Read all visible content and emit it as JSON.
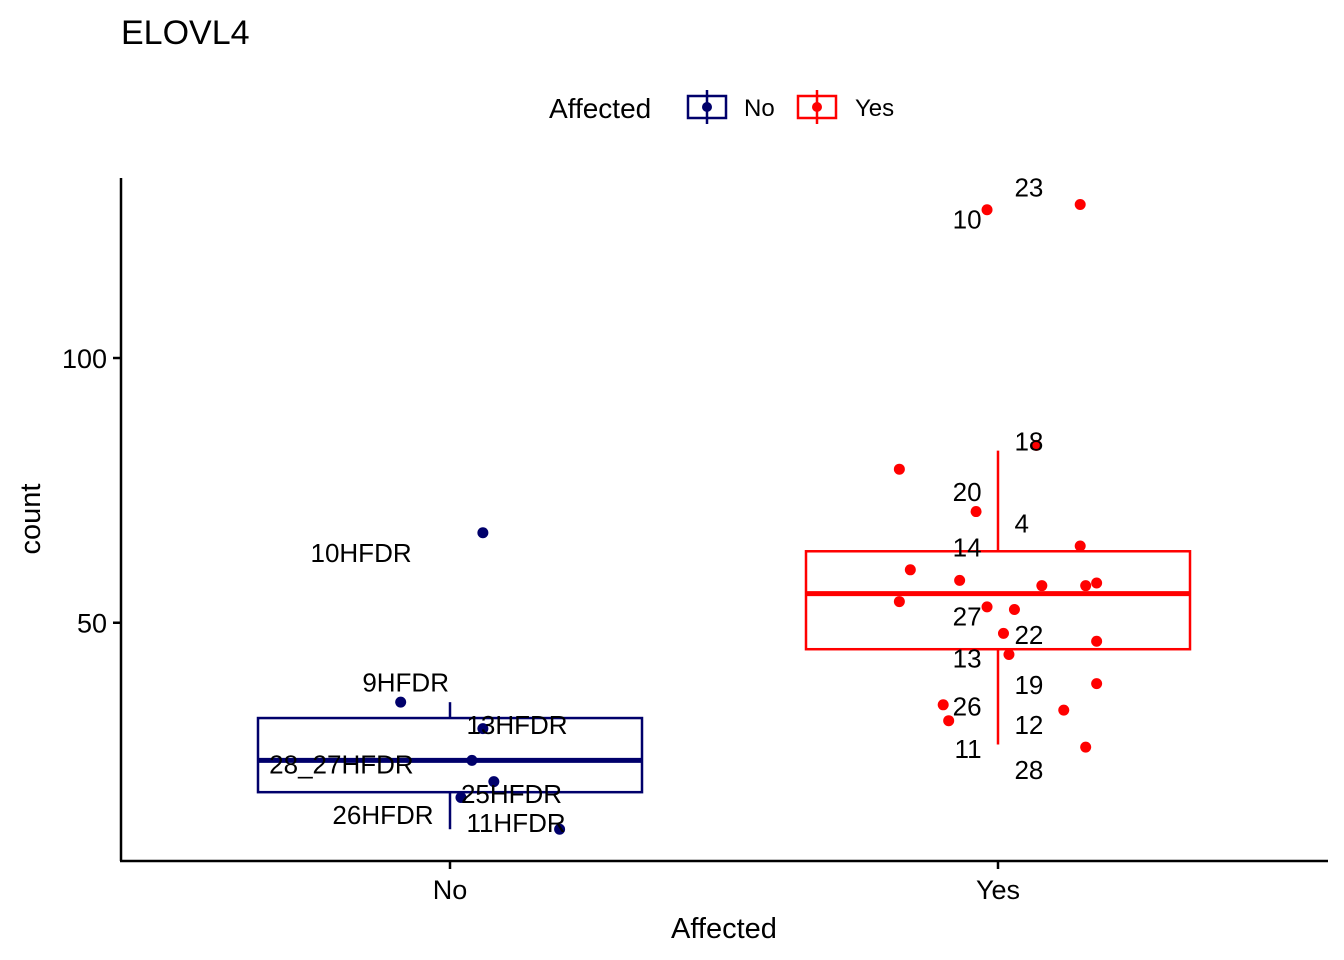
{
  "chart_data": {
    "type": "boxplot",
    "title": "ELOVL4",
    "xlabel": "Affected",
    "ylabel": "count",
    "ylim": [
      5,
      134
    ],
    "y_ticks": [
      50,
      100
    ],
    "categories": [
      "No",
      "Yes"
    ],
    "legend": {
      "title": "Affected",
      "position": "top",
      "entries": [
        {
          "label": "No",
          "color": "#00006B"
        },
        {
          "label": "Yes",
          "color": "#FF0000"
        }
      ]
    },
    "series": [
      {
        "name": "No",
        "color": "#00006B",
        "box": {
          "whisker_low": 11,
          "q1": 18,
          "median": 24,
          "q3": 32,
          "whisker_high": 35
        },
        "points": [
          {
            "x": 0.06,
            "y": 67
          },
          {
            "x": -0.09,
            "y": 35
          },
          {
            "x": 0.06,
            "y": 30
          },
          {
            "x": 0.04,
            "y": 24
          },
          {
            "x": 0.08,
            "y": 20
          },
          {
            "x": 0.02,
            "y": 17
          },
          {
            "x": 0.2,
            "y": 11
          }
        ],
        "labels": [
          {
            "text": "10HFDR",
            "x": -0.07,
            "y": 61.5,
            "anchor": "end"
          },
          {
            "text": "9HFDR",
            "x": -0.16,
            "y": 37,
            "anchor": "start"
          },
          {
            "text": "13HFDR",
            "x": 0.03,
            "y": 29,
            "anchor": "start"
          },
          {
            "text": "28_27HFDR",
            "x": -0.33,
            "y": 21.5,
            "anchor": "start"
          },
          {
            "text": "25HFDR",
            "x": 0.02,
            "y": 16,
            "anchor": "start"
          },
          {
            "text": "26HFDR",
            "x": -0.03,
            "y": 12,
            "anchor": "end"
          },
          {
            "text": "11HFDR",
            "x": 0.03,
            "y": 10.5,
            "anchor": "start"
          }
        ]
      },
      {
        "name": "Yes",
        "color": "#FF0000",
        "box": {
          "whisker_low": 27,
          "q1": 45,
          "median": 55.5,
          "q3": 63.5,
          "whisker_high": 82.5
        },
        "points": [
          {
            "x": -0.02,
            "y": 128
          },
          {
            "x": 0.15,
            "y": 129
          },
          {
            "x": 0.07,
            "y": 83.5
          },
          {
            "x": -0.18,
            "y": 79
          },
          {
            "x": -0.04,
            "y": 71
          },
          {
            "x": 0.15,
            "y": 64.5
          },
          {
            "x": -0.16,
            "y": 60
          },
          {
            "x": -0.07,
            "y": 58
          },
          {
            "x": 0.08,
            "y": 57
          },
          {
            "x": 0.16,
            "y": 57
          },
          {
            "x": 0.18,
            "y": 57.5
          },
          {
            "x": -0.18,
            "y": 54
          },
          {
            "x": -0.02,
            "y": 53
          },
          {
            "x": 0.03,
            "y": 52.5
          },
          {
            "x": 0.01,
            "y": 48
          },
          {
            "x": 0.18,
            "y": 46.5
          },
          {
            "x": 0.02,
            "y": 44
          },
          {
            "x": 0.18,
            "y": 38.5
          },
          {
            "x": -0.1,
            "y": 34.5
          },
          {
            "x": 0.12,
            "y": 33.5
          },
          {
            "x": -0.09,
            "y": 31.5
          },
          {
            "x": 0.16,
            "y": 26.5
          }
        ],
        "labels": [
          {
            "text": "10",
            "x": -0.03,
            "y": 124.5,
            "anchor": "end"
          },
          {
            "text": "23",
            "x": 0.03,
            "y": 130.5,
            "anchor": "start"
          },
          {
            "text": "18",
            "x": 0.03,
            "y": 82.5,
            "anchor": "start"
          },
          {
            "text": "20",
            "x": -0.03,
            "y": 73,
            "anchor": "end"
          },
          {
            "text": "4",
            "x": 0.03,
            "y": 67,
            "anchor": "start"
          },
          {
            "text": "14",
            "x": -0.03,
            "y": 62.5,
            "anchor": "end"
          },
          {
            "text": "27",
            "x": -0.03,
            "y": 49.5,
            "anchor": "end"
          },
          {
            "text": "22",
            "x": 0.03,
            "y": 46,
            "anchor": "start"
          },
          {
            "text": "13",
            "x": -0.03,
            "y": 41.5,
            "anchor": "end"
          },
          {
            "text": "19",
            "x": 0.03,
            "y": 36.5,
            "anchor": "start"
          },
          {
            "text": "26",
            "x": -0.03,
            "y": 32.5,
            "anchor": "end"
          },
          {
            "text": "12",
            "x": 0.03,
            "y": 29,
            "anchor": "start"
          },
          {
            "text": "11",
            "x": -0.03,
            "y": 24.5,
            "anchor": "end"
          },
          {
            "text": "28",
            "x": 0.03,
            "y": 20.5,
            "anchor": "start"
          }
        ]
      }
    ]
  }
}
